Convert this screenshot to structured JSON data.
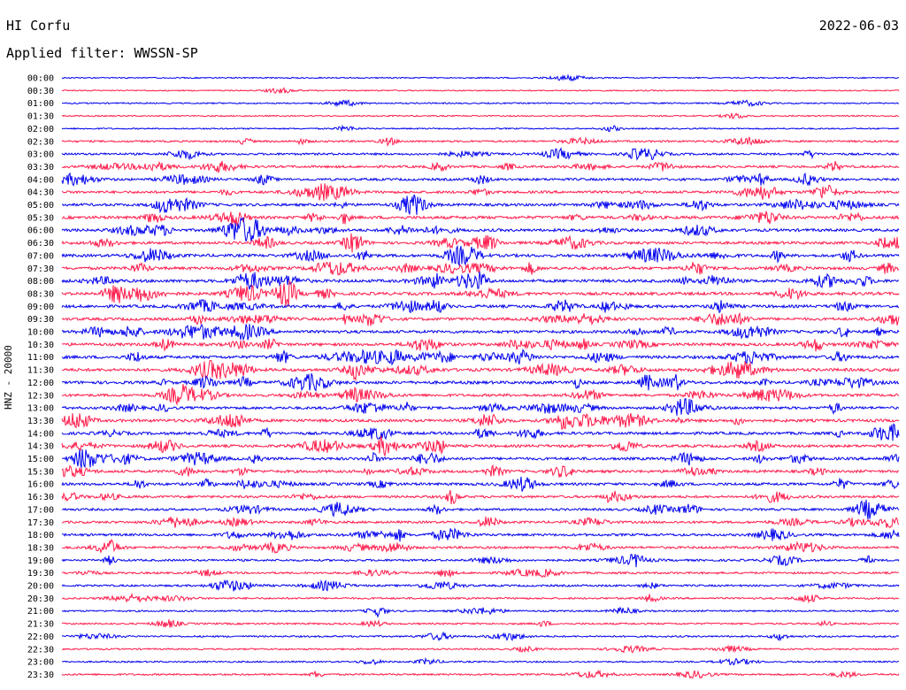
{
  "header": {
    "station": "HI Corfu",
    "date": "2022-06-03",
    "filter": "Applied filter: WWSSN-SP"
  },
  "chart_data": {
    "type": "line",
    "title": "HI Corfu",
    "ylabel": "HNZ - 20000",
    "row_labels": [
      "00:00",
      "00:30",
      "01:00",
      "01:30",
      "02:00",
      "02:30",
      "03:00",
      "03:30",
      "04:00",
      "04:30",
      "05:00",
      "05:30",
      "06:00",
      "06:30",
      "07:00",
      "07:30",
      "08:00",
      "08:30",
      "09:00",
      "09:30",
      "10:00",
      "10:30",
      "11:00",
      "11:30",
      "12:00",
      "12:30",
      "13:00",
      "13:30",
      "14:00",
      "14:30",
      "15:00",
      "15:30",
      "16:00",
      "16:30",
      "17:00",
      "17:30",
      "18:00",
      "18:30",
      "19:00",
      "19:30",
      "20:00",
      "20:30",
      "21:00",
      "21:30",
      "22:00",
      "22:30",
      "23:00",
      "23:30"
    ],
    "colors": [
      "#0000ee",
      "#ff1a4a"
    ],
    "activity_level": [
      0.05,
      0.06,
      0.12,
      0.08,
      0.12,
      0.35,
      0.45,
      0.55,
      0.6,
      0.65,
      0.7,
      0.85,
      0.75,
      0.75,
      0.8,
      0.8,
      0.85,
      0.85,
      0.8,
      0.75,
      0.8,
      0.8,
      0.85,
      0.85,
      0.85,
      0.7,
      0.7,
      0.8,
      0.75,
      0.7,
      0.75,
      0.7,
      0.7,
      0.6,
      0.55,
      0.55,
      0.6,
      0.55,
      0.45,
      0.4,
      0.4,
      0.3,
      0.25,
      0.3,
      0.25,
      0.2,
      0.2,
      0.3
    ]
  }
}
